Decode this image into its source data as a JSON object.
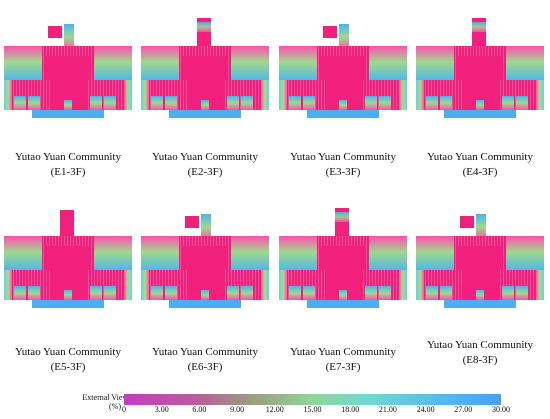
{
  "colors": {
    "low": "#c03fc0",
    "high": "#4b9ff0",
    "core": "#f0207c",
    "balcony": "#4aaef0"
  },
  "panels": [
    {
      "name": "Yutao Yuan Community",
      "code": "(E1-3F)",
      "tower": "tab"
    },
    {
      "name": "Yutao Yuan Community",
      "code": "(E2-3F)",
      "tower": "tall"
    },
    {
      "name": "Yutao Yuan Community",
      "code": "(E3-3F)",
      "tower": "tab"
    },
    {
      "name": "Yutao Yuan Community",
      "code": "(E4-3F)",
      "tower": "tall"
    },
    {
      "name": "Yutao Yuan Community",
      "code": "(E5-3F)",
      "tower": "mid"
    },
    {
      "name": "Yutao Yuan Community",
      "code": "(E6-3F)",
      "tower": "tab"
    },
    {
      "name": "Yutao Yuan Community",
      "code": "(E7-3F)",
      "tower": "tall"
    },
    {
      "name": "Yutao Yuan Community",
      "code": "(E8-3F)",
      "tower": "tab"
    }
  ],
  "legend": {
    "title_line1": "External View Ratio",
    "title_line2": "(%)",
    "ticks": [
      "0",
      "3.00",
      "6.00",
      "9.00",
      "12.00",
      "15.00",
      "18.00",
      "21.00",
      "24.00",
      "27.00",
      "30.00"
    ],
    "min": 0,
    "max": 30
  }
}
